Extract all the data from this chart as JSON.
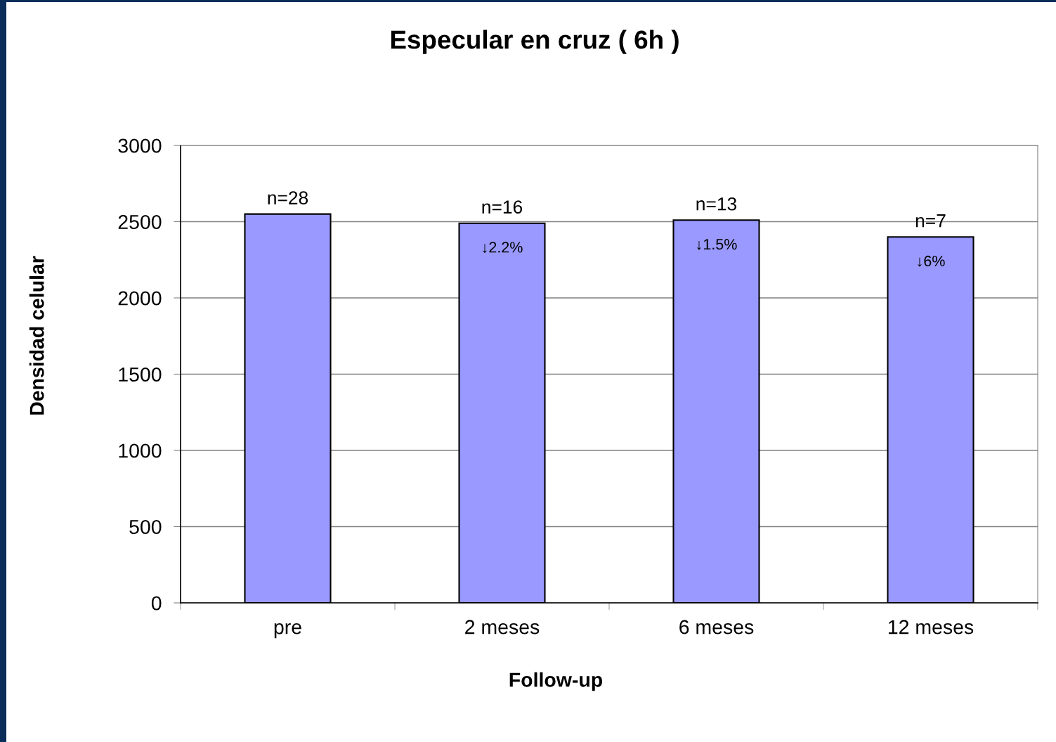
{
  "chart_data": {
    "type": "bar",
    "title": "Especular en cruz ( 6h )",
    "xlabel": "Follow-up",
    "ylabel": "Densidad celular",
    "categories": [
      "pre",
      "2 meses",
      "6 meses",
      "12 meses"
    ],
    "values": [
      2550,
      2490,
      2510,
      2400
    ],
    "color": "#9999ff",
    "ylim": [
      0,
      3000
    ],
    "yticks": [
      0,
      500,
      1000,
      1500,
      2000,
      2500,
      3000
    ],
    "grid": "y",
    "annotations": [
      {
        "text": "n=28",
        "x": "pre",
        "y": 2550
      },
      {
        "text": "n=16",
        "x": "2 meses",
        "y": 2490
      },
      {
        "text": "n=13",
        "x": "6 meses",
        "y": 2510
      },
      {
        "text": "n=7",
        "x": "12 meses",
        "y": 2400
      },
      {
        "text": "↓2.2%",
        "x": "2 meses",
        "y": 2490
      },
      {
        "text": "↓1.5%",
        "x": "6 meses",
        "y": 2510
      },
      {
        "text": "↓6%",
        "x": "12 meses",
        "y": 2400
      }
    ]
  }
}
